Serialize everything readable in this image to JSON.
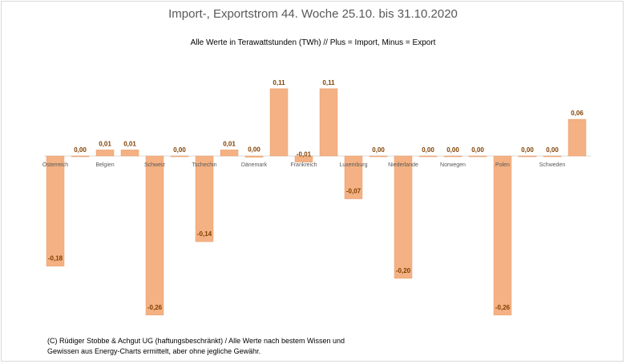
{
  "colors": {
    "bar": "#f4b183",
    "bar_edge": "#eba06c",
    "label": "#7f3f00",
    "axis": "#d9d9d9"
  },
  "chart_data": {
    "type": "bar",
    "title": "Import-, Exportstrom 44. Woche 25.10. bis 31.10.2020",
    "subtitle": "Alle Werte in Terawattstunden (TWh) // Plus = Import, Minus = Export",
    "categories": [
      "Österreich",
      "Belgien",
      "Schweiz",
      "Tschechin",
      "Dänemark",
      "Frankreich",
      "Luxemburg",
      "Niederlande",
      "Norwegen",
      "Polen",
      "Schweden"
    ],
    "series": [
      {
        "values": [
          -0.18,
          0.01,
          -0.26,
          -0.14,
          -0.002,
          -0.01,
          -0.07,
          -0.2,
          0.0,
          -0.26,
          0.0
        ]
      },
      {
        "values": [
          0.0,
          0.01,
          0.0,
          0.01,
          0.11,
          0.11,
          0.0,
          0.0,
          0.0,
          0.0,
          0.06
        ]
      }
    ],
    "labels": [
      [
        "-0,18",
        "0,01",
        "-0,26",
        "-0,14",
        "0,00",
        "-0,01",
        "-0,07",
        "-0,20",
        "0,00",
        "-0,26",
        "0,00"
      ],
      [
        "0,00",
        "0,01",
        "0,00",
        "0,01",
        "0,11",
        "0,11",
        "0,00",
        "0,00",
        "0,00",
        "0,00",
        "0,06"
      ]
    ],
    "ylim": [
      -0.27,
      0.12
    ],
    "grid": false,
    "legend": "none"
  },
  "footnote": {
    "line1": "(C) Rüdiger Stobbe & Achgut UG (haftungsbeschränkt) / Alle Werte nach bestem Wissen und",
    "line2": "Gewissen aus Energy-Charts ermittelt, aber ohne jegliche Gewähr."
  }
}
